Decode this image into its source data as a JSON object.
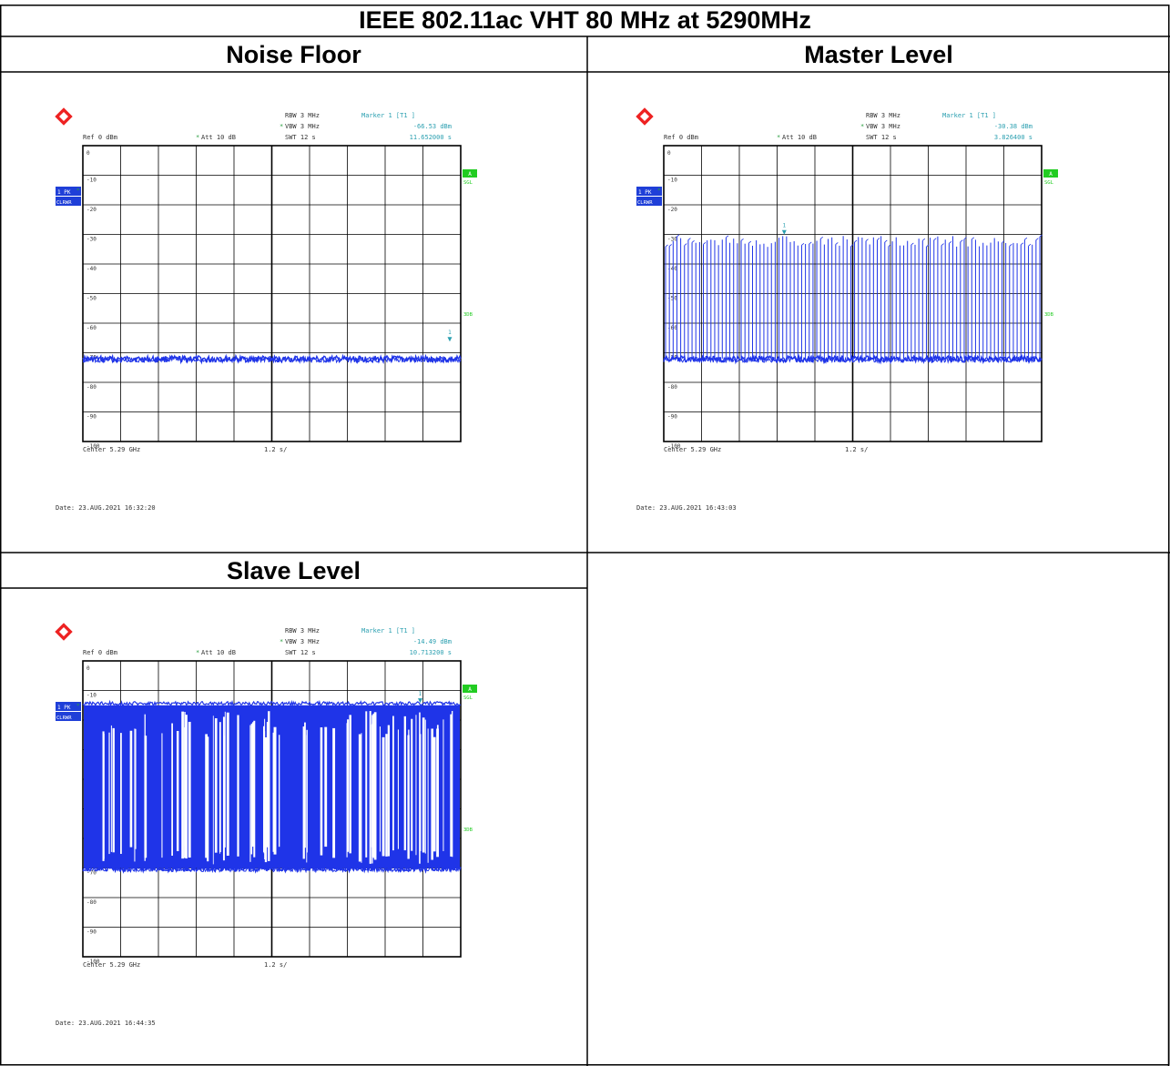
{
  "title": "IEEE 802.11ac VHT 80 MHz at 5290MHz",
  "colors": {
    "trace": "#1f34e8",
    "marker": "#2a9fb0",
    "green": "#22cc22",
    "badge": "#1f3fd8"
  },
  "panels": [
    {
      "heading": "Noise Floor",
      "date": "Date: 23.AUG.2021  16:32:20",
      "ref": "Ref  0 dBm",
      "att": "Att  10 dB",
      "rbw": "RBW  3 MHz",
      "vbw": "VBW  3 MHz",
      "swt": "SWT  12 s",
      "marker_title": "Marker 1 [T1 ]",
      "marker_level": "-66.53 dBm",
      "marker_time": "11.652000 s",
      "center": "Center  5.29 GHz",
      "div": "1.2 s/",
      "badge_top": "1 PK",
      "badge_bottom": "CLRWR",
      "right_top": "A",
      "right_sgl": "SGL",
      "right_3db": "3DB",
      "marker_num": "1"
    },
    {
      "heading": "Master Level",
      "date": "Date: 23.AUG.2021  16:43:03",
      "ref": "Ref  0 dBm",
      "att": "Att  10 dB",
      "rbw": "RBW  3 MHz",
      "vbw": "VBW  3 MHz",
      "swt": "SWT  12 s",
      "marker_title": "Marker 1 [T1 ]",
      "marker_level": "-30.38 dBm",
      "marker_time": "3.826400 s",
      "center": "Center  5.29 GHz",
      "div": "1.2 s/",
      "badge_top": "1 PK",
      "badge_bottom": "CLRWR",
      "right_top": "A",
      "right_sgl": "SGL",
      "right_3db": "3DB",
      "marker_num": "1"
    },
    {
      "heading": "Slave Level",
      "date": "Date: 23.AUG.2021  16:44:35",
      "ref": "Ref  0 dBm",
      "att": "Att  10 dB",
      "rbw": "RBW  3 MHz",
      "vbw": "VBW  3 MHz",
      "swt": "SWT  12 s",
      "marker_title": "Marker 1 [T1 ]",
      "marker_level": "-14.49 dBm",
      "marker_time": "10.713200 s",
      "center": "Center  5.29 GHz",
      "div": "1.2 s/",
      "badge_top": "1 PK",
      "badge_bottom": "CLRWR",
      "right_top": "A",
      "right_sgl": "SGL",
      "right_3db": "3DB",
      "marker_num": "1"
    }
  ],
  "chart_data": [
    {
      "type": "line",
      "name": "Noise Floor",
      "ylim": [
        -100,
        0
      ],
      "xlim": [
        0,
        12
      ],
      "y_ticks": [
        "0",
        "-10",
        "-20",
        "-30",
        "-40",
        "-50",
        "-60",
        "-70",
        "-80",
        "-90",
        "-100"
      ],
      "noise_floor_dbm": -72,
      "burst_top_dbm": null,
      "marker": {
        "x_s": 11.652,
        "y_dbm": -66.53
      }
    },
    {
      "type": "line",
      "name": "Master Level",
      "ylim": [
        -100,
        0
      ],
      "xlim": [
        0,
        12
      ],
      "y_ticks": [
        "0",
        "-10",
        "-20",
        "-30",
        "-40",
        "-50",
        "-60",
        "-70",
        "-80",
        "-90",
        "-100"
      ],
      "noise_floor_dbm": -72,
      "burst_top_dbm": -33,
      "marker": {
        "x_s": 3.8264,
        "y_dbm": -30.38
      }
    },
    {
      "type": "line",
      "name": "Slave Level",
      "ylim": [
        -100,
        0
      ],
      "xlim": [
        0,
        12
      ],
      "y_ticks": [
        "0",
        "-10",
        "-20",
        "-30",
        "-40",
        "-50",
        "-60",
        "-70",
        "-80",
        "-90",
        "-100"
      ],
      "noise_floor_dbm": -70,
      "burst_top_dbm": -15,
      "marker": {
        "x_s": 10.7132,
        "y_dbm": -14.49
      }
    }
  ]
}
